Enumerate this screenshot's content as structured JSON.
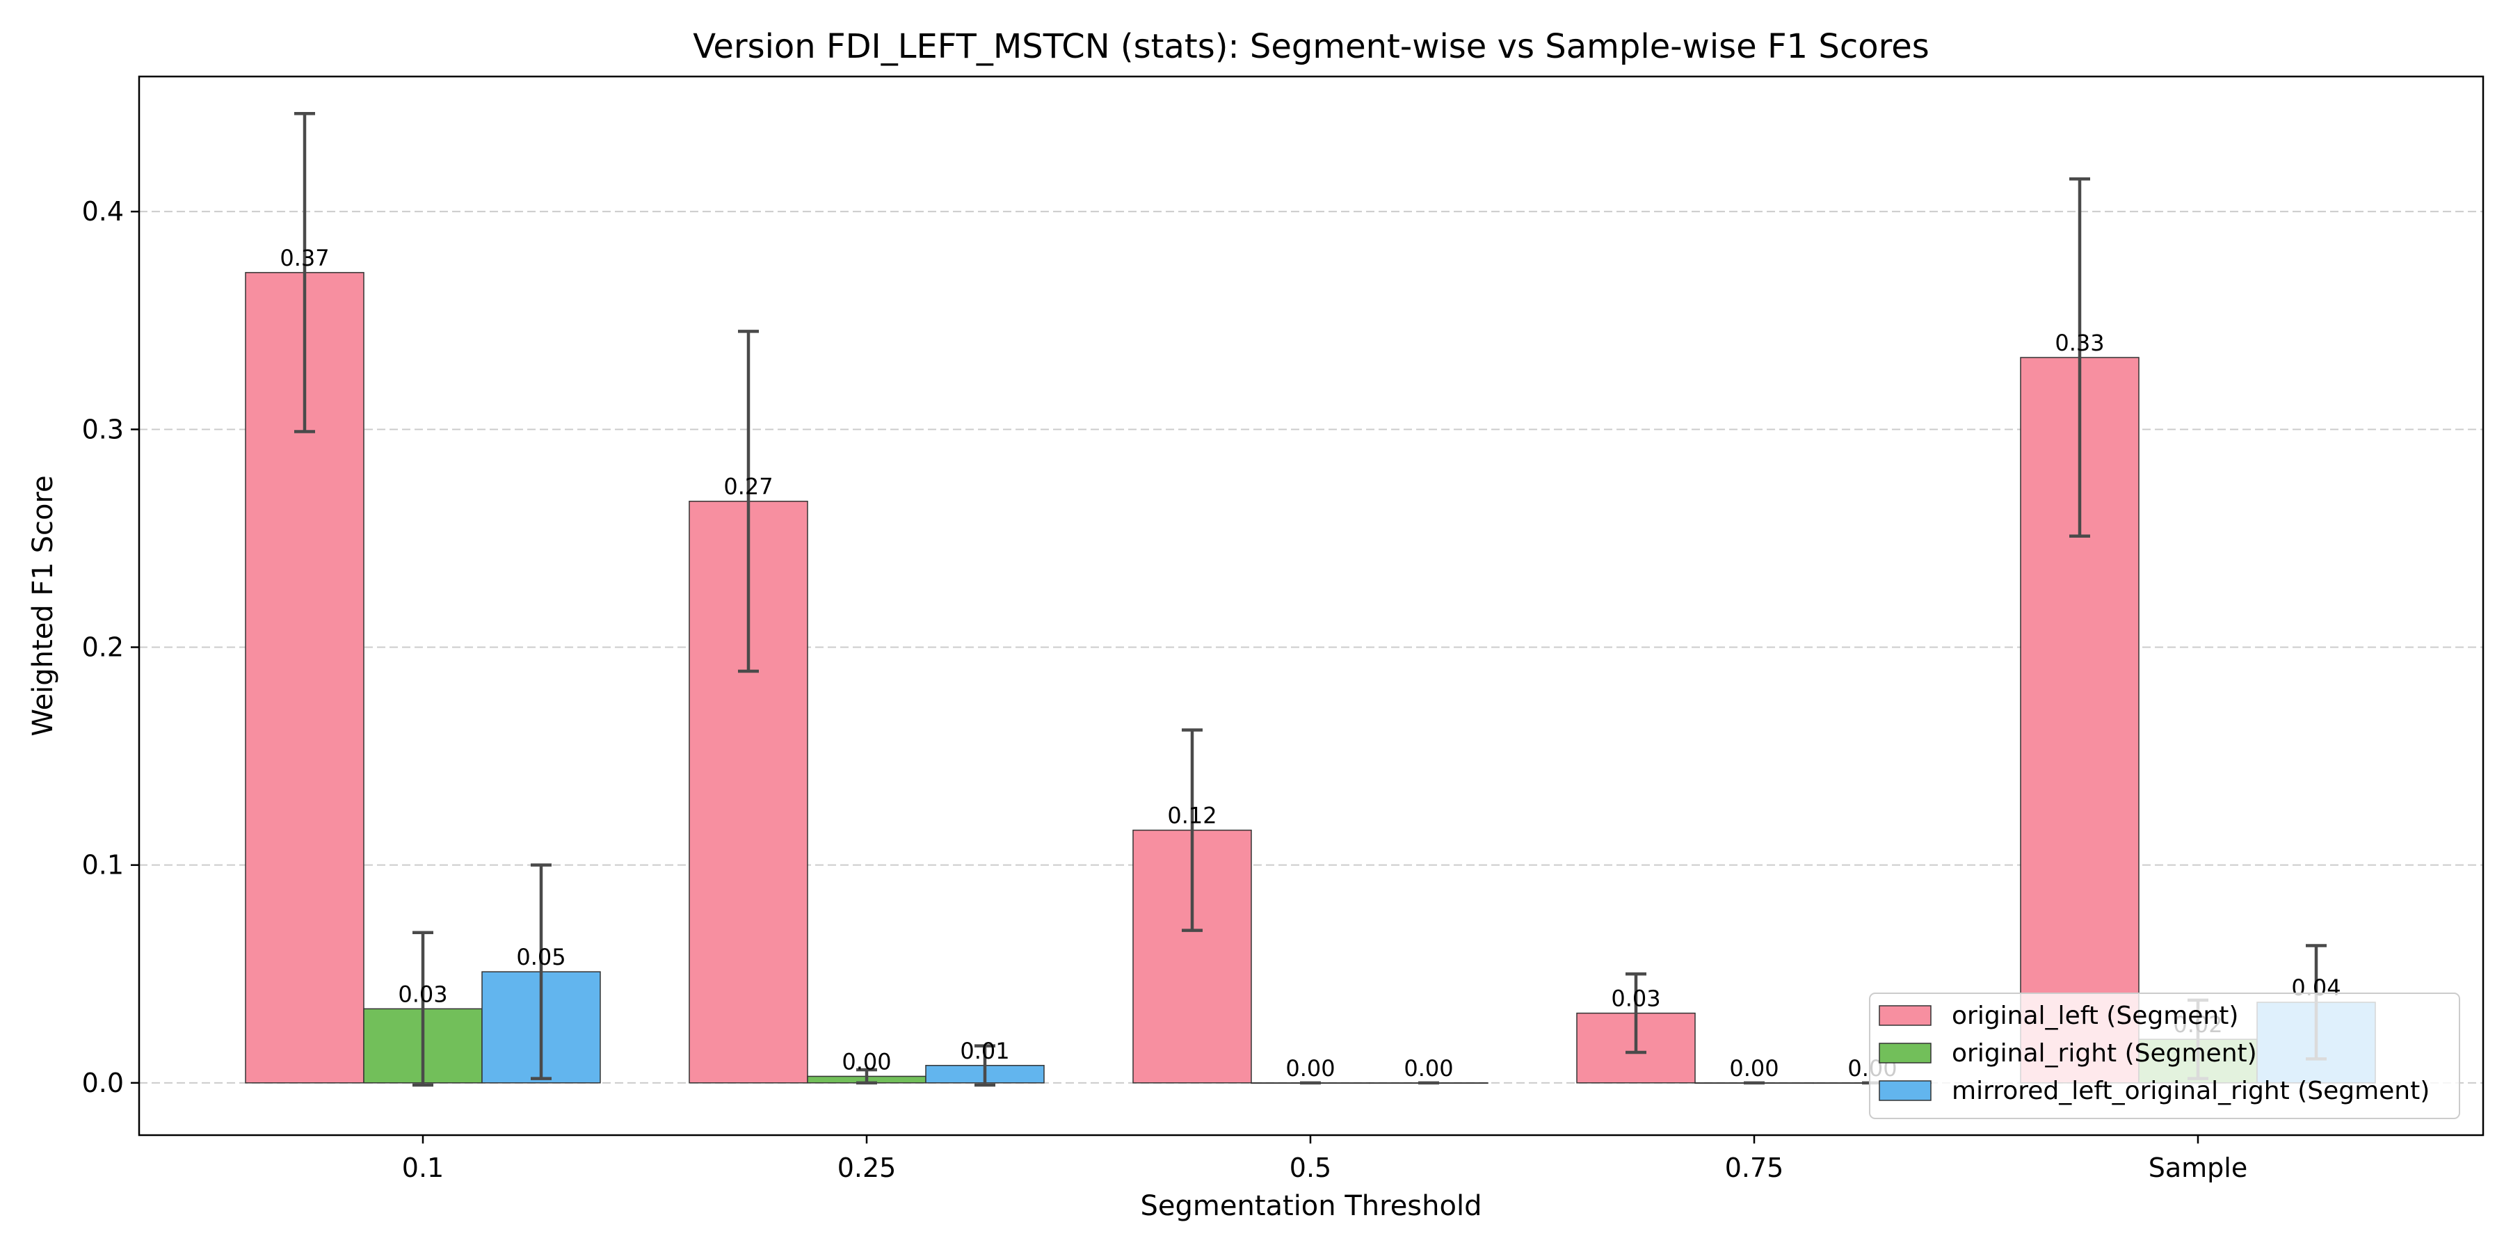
{
  "chart_data": {
    "type": "bar",
    "title": "Version FDI_LEFT_MSTCN (stats): Segment-wise vs Sample-wise F1 Scores",
    "xlabel": "Segmentation Threshold",
    "ylabel": "Weighted F1 Score",
    "categories": [
      "0.1",
      "0.25",
      "0.5",
      "0.75",
      "Sample"
    ],
    "ylim": [
      -0.024,
      0.462
    ],
    "yticks": [
      0.0,
      0.1,
      0.2,
      0.3,
      0.4
    ],
    "ytick_labels": [
      "0.0",
      "0.1",
      "0.2",
      "0.3",
      "0.4"
    ],
    "grid": "horizontal dashed",
    "legend_position": "lower-right",
    "series": [
      {
        "name": "original_left (Segment)",
        "color": "#f78fa0",
        "values": [
          0.372,
          0.267,
          0.116,
          0.032,
          0.333
        ],
        "errors": [
          0.073,
          0.078,
          0.046,
          0.018,
          0.082
        ],
        "labels": [
          "0.37",
          "0.27",
          "0.12",
          "0.03",
          "0.33"
        ]
      },
      {
        "name": "original_right (Segment)",
        "color": "#72bf5a",
        "values": [
          0.034,
          0.003,
          0.0,
          0.0,
          0.02
        ],
        "errors": [
          0.035,
          0.003,
          0.0,
          0.0,
          0.018
        ],
        "labels": [
          "0.03",
          "0.00",
          "0.00",
          "0.00",
          "0.02"
        ]
      },
      {
        "name": "mirrored_left_original_right (Segment)",
        "color": "#62b5ee",
        "values": [
          0.051,
          0.008,
          0.0,
          0.0,
          0.037
        ],
        "errors": [
          0.049,
          0.009,
          0.0,
          0.0,
          0.026
        ],
        "labels": [
          "0.05",
          "0.01",
          "0.00",
          "0.00",
          "0.04"
        ]
      }
    ]
  }
}
